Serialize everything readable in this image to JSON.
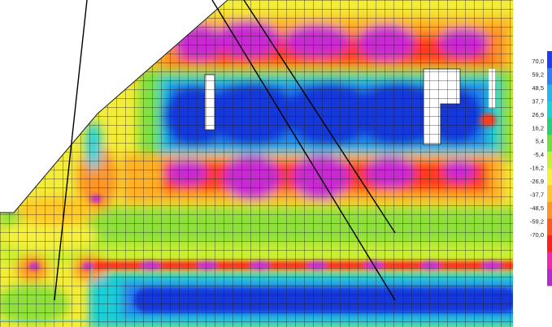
{
  "legend": {
    "labels": [
      "70,0",
      "59,2",
      "48,5",
      "37,7",
      "26,9",
      "16,2",
      "5,4",
      "-5,4",
      "-16,2",
      "-26,9",
      "-37,7",
      "-48,5",
      "-59,2",
      "-70,0"
    ],
    "colors": [
      "#1e3cf0",
      "#2d7df5",
      "#22b6f0",
      "#1ed2d2",
      "#22d278",
      "#6ee03c",
      "#c8f032",
      "#f6f03c",
      "#ffc828",
      "#ff9628",
      "#ff5a1e",
      "#ff1e1e",
      "#f028aa",
      "#b428d2"
    ]
  },
  "palette": {
    "shell_base": "#f3ec3a",
    "floor_green": "#8fe03c",
    "cyan_band": "#1ecdd6",
    "blue_strip": "#1538d8",
    "hot_magenta": "#c82ad2",
    "opening_fill": "#ffffff",
    "mesh_line": "#1a1a1a",
    "left_cut_line": "#38e0f0"
  }
}
